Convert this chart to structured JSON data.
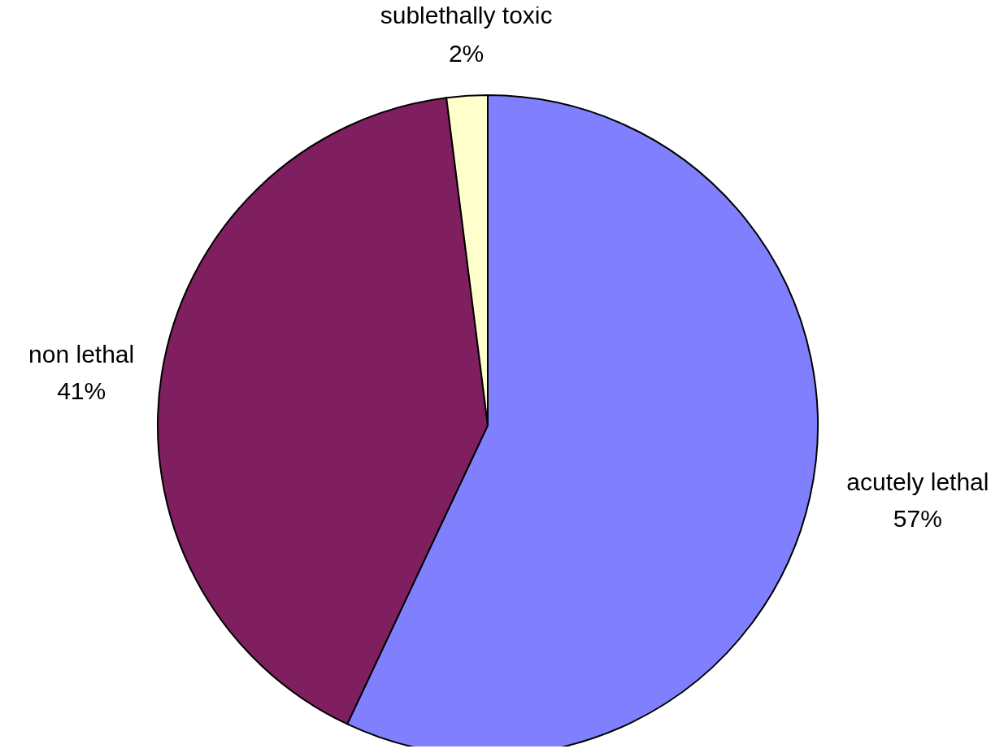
{
  "chart_data": {
    "type": "pie",
    "categories": [
      "acutely lethal",
      "non lethal",
      "sublethally toxic"
    ],
    "values": [
      57,
      41,
      2
    ],
    "value_labels": [
      "57%",
      "41%",
      "2%"
    ],
    "colors": [
      "#8080ff",
      "#7f1f5f",
      "#ffffcc"
    ]
  }
}
